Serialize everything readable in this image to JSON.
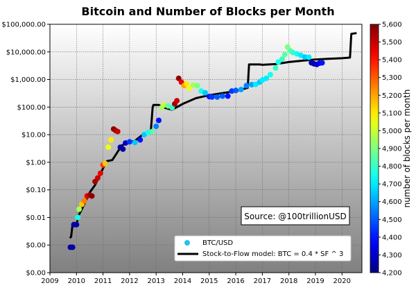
{
  "chart_data": {
    "type": "scatter",
    "title": "Bitcoin and Number of Blocks per Month",
    "xlabel": "",
    "ylabel": "",
    "x_scale": "linear",
    "y_scale": "log",
    "xlim": [
      2009,
      2020.75
    ],
    "ylim": [
      0.0001,
      100000
    ],
    "x_ticks": [
      2009,
      2010,
      2011,
      2012,
      2013,
      2014,
      2015,
      2016,
      2017,
      2018,
      2019,
      2020
    ],
    "x_tick_labels": [
      "2009",
      "2010",
      "2011",
      "2012",
      "2013",
      "2014",
      "2015",
      "2016",
      "2017",
      "2018",
      "2019",
      "2020"
    ],
    "y_ticks": [
      0.0001,
      0.001,
      0.01,
      0.1,
      1,
      10,
      100,
      1000,
      10000,
      100000
    ],
    "y_tick_labels": [
      "$0.00",
      "$0.00",
      "$0.01",
      "$0.10",
      "$1.00",
      "$10.00",
      "$100.00",
      "$1,000.00",
      "$10,000.00",
      "$100,000.00"
    ],
    "grid": true,
    "legend_position": "bottom-right",
    "annotation": "Source: @100trillionUSD",
    "colorbar": {
      "label": "number of blocks per month",
      "min": 4200,
      "max": 5600,
      "ticks": [
        4200,
        4300,
        4400,
        4500,
        4600,
        4700,
        4800,
        4900,
        5000,
        5100,
        5200,
        5300,
        5400,
        5500,
        5600
      ],
      "tick_labels": [
        "4,200",
        "4,300",
        "4,400",
        "4,500",
        "4,600",
        "4,700",
        "4,800",
        "4,900",
        "5,000",
        "5,100",
        "5,200",
        "5,300",
        "5,400",
        "5,500",
        "5,600"
      ]
    },
    "series": [
      {
        "name": "BTC/USD",
        "kind": "scatter",
        "color_by": "blocks_per_month",
        "points": [
          {
            "x": 2009.77,
            "y": 0.00083,
            "c": 4250
          },
          {
            "x": 2009.85,
            "y": 0.00083,
            "c": 4250
          },
          {
            "x": 2009.9,
            "y": 0.0055,
            "c": 4250
          },
          {
            "x": 2010.0,
            "y": 0.0055,
            "c": 4250
          },
          {
            "x": 2010.05,
            "y": 0.01,
            "c": 4750
          },
          {
            "x": 2010.1,
            "y": 0.02,
            "c": 4950
          },
          {
            "x": 2010.2,
            "y": 0.03,
            "c": 5150
          },
          {
            "x": 2010.3,
            "y": 0.04,
            "c": 5250
          },
          {
            "x": 2010.4,
            "y": 0.06,
            "c": 5450
          },
          {
            "x": 2010.5,
            "y": 0.065,
            "c": 5550
          },
          {
            "x": 2010.58,
            "y": 0.06,
            "c": 5580
          },
          {
            "x": 2010.7,
            "y": 0.2,
            "c": 5550
          },
          {
            "x": 2010.8,
            "y": 0.27,
            "c": 5500
          },
          {
            "x": 2010.9,
            "y": 0.4,
            "c": 5450
          },
          {
            "x": 2011.0,
            "y": 0.8,
            "c": 5350
          },
          {
            "x": 2011.08,
            "y": 0.9,
            "c": 5150
          },
          {
            "x": 2011.2,
            "y": 3.5,
            "c": 5050
          },
          {
            "x": 2011.3,
            "y": 6.5,
            "c": 5100
          },
          {
            "x": 2011.4,
            "y": 16,
            "c": 5580
          },
          {
            "x": 2011.48,
            "y": 14,
            "c": 5550
          },
          {
            "x": 2011.55,
            "y": 13,
            "c": 5500
          },
          {
            "x": 2011.65,
            "y": 3.5,
            "c": 4250
          },
          {
            "x": 2011.75,
            "y": 3.0,
            "c": 4250
          },
          {
            "x": 2011.85,
            "y": 5.0,
            "c": 4300
          },
          {
            "x": 2012.0,
            "y": 5.5,
            "c": 4450
          },
          {
            "x": 2012.2,
            "y": 5.2,
            "c": 4650
          },
          {
            "x": 2012.4,
            "y": 6.5,
            "c": 4400
          },
          {
            "x": 2012.55,
            "y": 10,
            "c": 4650
          },
          {
            "x": 2012.7,
            "y": 12,
            "c": 4750
          },
          {
            "x": 2012.85,
            "y": 13,
            "c": 4850
          },
          {
            "x": 2013.0,
            "y": 20,
            "c": 4550
          },
          {
            "x": 2013.1,
            "y": 33,
            "c": 4400
          },
          {
            "x": 2013.2,
            "y": 95,
            "c": 4950
          },
          {
            "x": 2013.3,
            "y": 120,
            "c": 5000
          },
          {
            "x": 2013.45,
            "y": 110,
            "c": 4850
          },
          {
            "x": 2013.6,
            "y": 95,
            "c": 4800
          },
          {
            "x": 2013.7,
            "y": 130,
            "c": 5550
          },
          {
            "x": 2013.78,
            "y": 170,
            "c": 5500
          },
          {
            "x": 2013.85,
            "y": 1100,
            "c": 5580
          },
          {
            "x": 2013.95,
            "y": 800,
            "c": 5450
          },
          {
            "x": 2014.05,
            "y": 600,
            "c": 5200
          },
          {
            "x": 2014.15,
            "y": 700,
            "c": 5100
          },
          {
            "x": 2014.25,
            "y": 480,
            "c": 5050
          },
          {
            "x": 2014.4,
            "y": 620,
            "c": 4950
          },
          {
            "x": 2014.55,
            "y": 600,
            "c": 4900
          },
          {
            "x": 2014.7,
            "y": 380,
            "c": 4750
          },
          {
            "x": 2014.85,
            "y": 330,
            "c": 4650
          },
          {
            "x": 2015.0,
            "y": 240,
            "c": 4400
          },
          {
            "x": 2015.1,
            "y": 230,
            "c": 4450
          },
          {
            "x": 2015.3,
            "y": 230,
            "c": 4500
          },
          {
            "x": 2015.5,
            "y": 250,
            "c": 4500
          },
          {
            "x": 2015.7,
            "y": 250,
            "c": 4400
          },
          {
            "x": 2015.85,
            "y": 380,
            "c": 4450
          },
          {
            "x": 2016.0,
            "y": 400,
            "c": 4500
          },
          {
            "x": 2016.2,
            "y": 430,
            "c": 4600
          },
          {
            "x": 2016.4,
            "y": 600,
            "c": 4550
          },
          {
            "x": 2016.6,
            "y": 650,
            "c": 4600
          },
          {
            "x": 2016.75,
            "y": 660,
            "c": 4700
          },
          {
            "x": 2016.9,
            "y": 800,
            "c": 4650
          },
          {
            "x": 2017.0,
            "y": 950,
            "c": 4700
          },
          {
            "x": 2017.15,
            "y": 1100,
            "c": 4700
          },
          {
            "x": 2017.3,
            "y": 1500,
            "c": 4750
          },
          {
            "x": 2017.5,
            "y": 2600,
            "c": 4800
          },
          {
            "x": 2017.6,
            "y": 4300,
            "c": 4750
          },
          {
            "x": 2017.75,
            "y": 5500,
            "c": 4800
          },
          {
            "x": 2017.85,
            "y": 8000,
            "c": 4850
          },
          {
            "x": 2017.95,
            "y": 15000,
            "c": 4900
          },
          {
            "x": 2018.05,
            "y": 11000,
            "c": 4850
          },
          {
            "x": 2018.15,
            "y": 9500,
            "c": 4800
          },
          {
            "x": 2018.3,
            "y": 8500,
            "c": 4750
          },
          {
            "x": 2018.45,
            "y": 7500,
            "c": 4700
          },
          {
            "x": 2018.6,
            "y": 6500,
            "c": 4650
          },
          {
            "x": 2018.75,
            "y": 6400,
            "c": 4700
          },
          {
            "x": 2018.85,
            "y": 4000,
            "c": 4300
          },
          {
            "x": 2018.95,
            "y": 3700,
            "c": 4250
          },
          {
            "x": 2019.05,
            "y": 3500,
            "c": 4300
          },
          {
            "x": 2019.15,
            "y": 3900,
            "c": 4350
          },
          {
            "x": 2019.25,
            "y": 4000,
            "c": 4400
          }
        ]
      },
      {
        "name": "Stock-to-Flow model: BTC = 0.4 * SF ^ 3",
        "kind": "line",
        "color": "#000000",
        "points": [
          {
            "x": 2009.75,
            "y": 0.0018
          },
          {
            "x": 2009.8,
            "y": 0.002
          },
          {
            "x": 2009.85,
            "y": 0.0055
          },
          {
            "x": 2010.0,
            "y": 0.0055
          },
          {
            "x": 2010.08,
            "y": 0.012
          },
          {
            "x": 2010.2,
            "y": 0.02
          },
          {
            "x": 2010.35,
            "y": 0.04
          },
          {
            "x": 2010.5,
            "y": 0.08
          },
          {
            "x": 2010.7,
            "y": 0.15
          },
          {
            "x": 2010.85,
            "y": 0.3
          },
          {
            "x": 2011.0,
            "y": 0.6
          },
          {
            "x": 2011.15,
            "y": 1.1
          },
          {
            "x": 2011.35,
            "y": 1.2
          },
          {
            "x": 2011.5,
            "y": 2
          },
          {
            "x": 2011.7,
            "y": 4
          },
          {
            "x": 2011.9,
            "y": 5
          },
          {
            "x": 2012.2,
            "y": 6
          },
          {
            "x": 2012.5,
            "y": 10
          },
          {
            "x": 2012.8,
            "y": 13
          },
          {
            "x": 2012.87,
            "y": 100
          },
          {
            "x": 2012.9,
            "y": 120
          },
          {
            "x": 2013.1,
            "y": 120
          },
          {
            "x": 2013.25,
            "y": 100
          },
          {
            "x": 2013.4,
            "y": 90
          },
          {
            "x": 2013.6,
            "y": 80
          },
          {
            "x": 2014.0,
            "y": 130
          },
          {
            "x": 2014.5,
            "y": 210
          },
          {
            "x": 2015.0,
            "y": 270
          },
          {
            "x": 2015.5,
            "y": 320
          },
          {
            "x": 2016.0,
            "y": 380
          },
          {
            "x": 2016.45,
            "y": 500
          },
          {
            "x": 2016.5,
            "y": 3500
          },
          {
            "x": 2016.9,
            "y": 3500
          },
          {
            "x": 2017.0,
            "y": 3400
          },
          {
            "x": 2017.5,
            "y": 3600
          },
          {
            "x": 2018.0,
            "y": 4300
          },
          {
            "x": 2018.5,
            "y": 4800
          },
          {
            "x": 2019.0,
            "y": 5300
          },
          {
            "x": 2019.5,
            "y": 5600
          },
          {
            "x": 2020.0,
            "y": 5900
          },
          {
            "x": 2020.3,
            "y": 6200
          },
          {
            "x": 2020.35,
            "y": 45000
          },
          {
            "x": 2020.55,
            "y": 48000
          }
        ]
      }
    ]
  }
}
